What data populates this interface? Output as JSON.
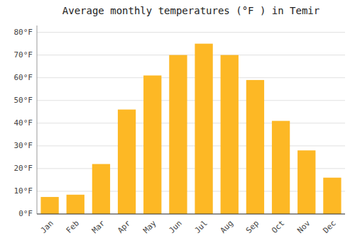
{
  "chart_data": {
    "type": "bar",
    "title": "Average monthly temperatures (°F ) in Temir",
    "categories": [
      "Jan",
      "Feb",
      "Mar",
      "Apr",
      "May",
      "Jun",
      "Jul",
      "Aug",
      "Sep",
      "Oct",
      "Nov",
      "Dec"
    ],
    "values": [
      7.5,
      8.5,
      22.0,
      46.0,
      61.0,
      70.0,
      75.0,
      70.0,
      59.0,
      41.0,
      28.0,
      16.0
    ],
    "color": "#FDB825",
    "ylim": [
      0,
      83
    ],
    "yticks": [
      {
        "value": 0,
        "label": "0°F"
      },
      {
        "value": 10,
        "label": "10°F"
      },
      {
        "value": 20,
        "label": "20°F"
      },
      {
        "value": 30,
        "label": "30°F"
      },
      {
        "value": 40,
        "label": "40°F"
      },
      {
        "value": 50,
        "label": "50°F"
      },
      {
        "value": 60,
        "label": "60°F"
      },
      {
        "value": 70,
        "label": "70°F"
      },
      {
        "value": 80,
        "label": "80°F"
      }
    ],
    "grid": true
  }
}
